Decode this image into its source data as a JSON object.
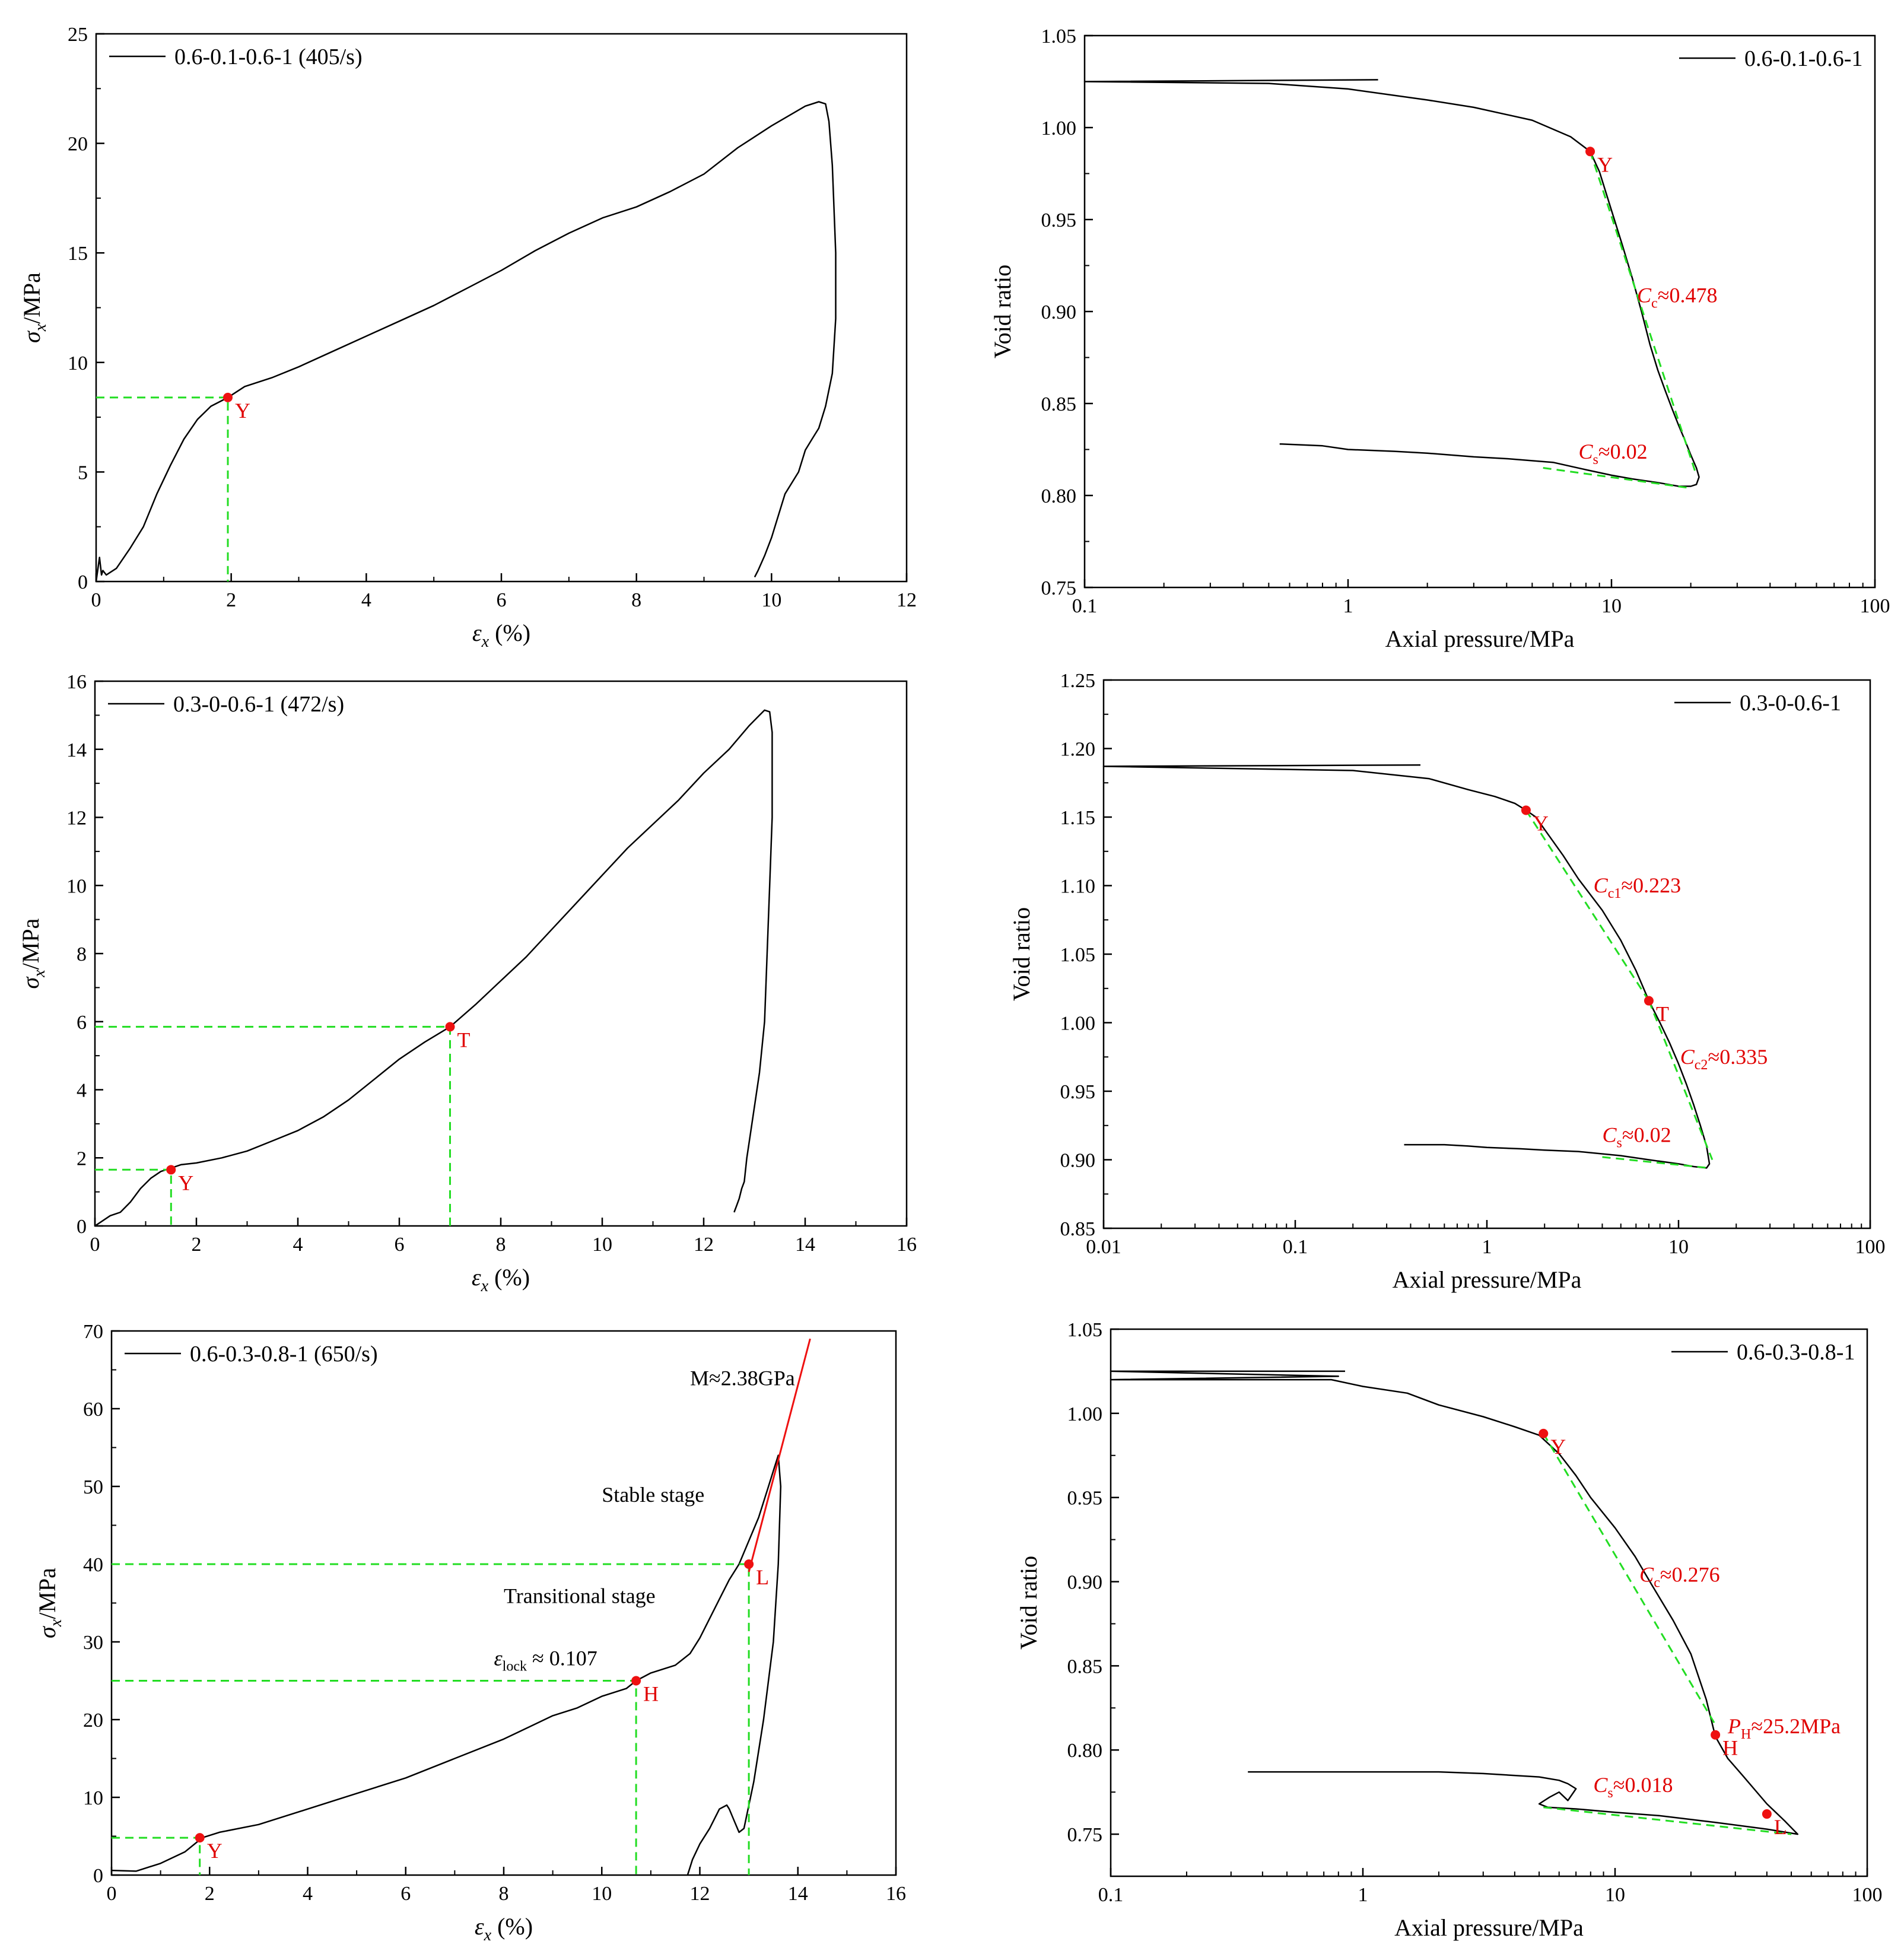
{
  "chart_data": [
    {
      "id": "p1",
      "type": "line",
      "xscale": "linear",
      "xlim": [
        0,
        12
      ],
      "ylim": [
        0,
        25
      ],
      "xticks": [
        0,
        2,
        4,
        6,
        8,
        10,
        12
      ],
      "yticks": [
        0,
        5,
        10,
        15,
        20,
        25
      ],
      "xlabel": "ε_x (%)",
      "ylabel": "σ_x/MPa",
      "legend": "0.6-0.1-0.6-1 (405/s)",
      "series": [
        {
          "name": "0.6-0.1-0.6-1 (405/s)",
          "x": [
            0,
            0.05,
            0.08,
            0.1,
            0.15,
            0.3,
            0.5,
            0.7,
            0.9,
            1.1,
            1.3,
            1.5,
            1.7,
            1.95,
            2.2,
            2.6,
            3,
            3.5,
            4,
            4.5,
            5,
            5.5,
            6,
            6.5,
            7,
            7.5,
            8,
            8.5,
            9,
            9.5,
            10,
            10.5,
            10.7,
            10.8,
            10.85,
            10.9,
            10.95,
            10.95,
            10.9,
            10.8,
            10.7,
            10.6,
            10.5,
            10.4,
            10.2,
            10,
            9.9,
            9.8,
            9.75
          ],
          "y": [
            0,
            1.1,
            0.3,
            0.5,
            0.3,
            0.6,
            1.5,
            2.5,
            4,
            5.3,
            6.5,
            7.4,
            8,
            8.4,
            8.9,
            9.3,
            9.8,
            10.5,
            11.2,
            11.9,
            12.6,
            13.4,
            14.2,
            15.1,
            15.9,
            16.6,
            17.1,
            17.8,
            18.6,
            19.8,
            20.8,
            21.7,
            21.9,
            21.8,
            21,
            19,
            15,
            12,
            9.5,
            8,
            7,
            6.5,
            6,
            5,
            4,
            2,
            1.2,
            0.5,
            0.2
          ]
        },
        {
          "name": "guide",
          "style": "dashed-green",
          "x": [
            0,
            1.95,
            1.95
          ],
          "y": [
            8.4,
            8.4,
            0
          ]
        }
      ],
      "points": [
        {
          "label": "Y",
          "x": 1.95,
          "y": 8.4
        }
      ],
      "annotations": []
    },
    {
      "id": "p2",
      "type": "line",
      "xscale": "log",
      "xlim": [
        0.1,
        100
      ],
      "ylim": [
        0.75,
        1.05
      ],
      "xticks": [
        0.1,
        1,
        10,
        100
      ],
      "xtick_labels": [
        "0.1",
        "1",
        "10",
        "100"
      ],
      "yticks": [
        0.75,
        0.8,
        0.85,
        0.9,
        0.95,
        1.0,
        1.05
      ],
      "ytick_labels": [
        "0.75",
        "0.80",
        "0.85",
        "0.90",
        "0.95",
        "1.00",
        "1.05"
      ],
      "xlabel": "Axial pressure/MPa",
      "ylabel": "Void ratio",
      "legend": "0.6-0.1-0.6-1",
      "series": [
        {
          "name": "0.6-0.1-0.6-1",
          "x": [
            1.3,
            0.1,
            0.5,
            1,
            2,
            3,
            5,
            7,
            8.3,
            9,
            10,
            11,
            12,
            13,
            14,
            15,
            16,
            17,
            18,
            19,
            20,
            21,
            21.5,
            21,
            20,
            18,
            15,
            12,
            10,
            8,
            6,
            4,
            3,
            2,
            1.5,
            1,
            0.8,
            0.55
          ],
          "y": [
            1.026,
            1.025,
            1.024,
            1.021,
            1.015,
            1.011,
            1.004,
            0.995,
            0.987,
            0.976,
            0.955,
            0.936,
            0.918,
            0.9,
            0.882,
            0.868,
            0.857,
            0.847,
            0.838,
            0.83,
            0.822,
            0.815,
            0.81,
            0.806,
            0.805,
            0.805,
            0.807,
            0.809,
            0.811,
            0.814,
            0.818,
            0.82,
            0.821,
            0.823,
            0.824,
            0.825,
            0.827,
            0.828
          ]
        },
        {
          "name": "Cc fit",
          "style": "dashed-green",
          "x": [
            8.3,
            21
          ],
          "y": [
            0.987,
            0.811
          ]
        },
        {
          "name": "Cs fit",
          "style": "dashed-green",
          "x": [
            5.5,
            20
          ],
          "y": [
            0.815,
            0.804
          ]
        }
      ],
      "points": [
        {
          "label": "Y",
          "x": 8.3,
          "y": 0.987
        }
      ],
      "annotations": [
        {
          "main": "C",
          "sub": "c",
          "rest": "≈0.478",
          "x": 12.5,
          "y": 0.905
        },
        {
          "main": "C",
          "sub": "s",
          "rest": "≈0.02",
          "x": 7.5,
          "y": 0.82
        }
      ]
    },
    {
      "id": "p3",
      "type": "line",
      "xscale": "linear",
      "xlim": [
        0,
        16
      ],
      "ylim": [
        0,
        16
      ],
      "xticks": [
        0,
        2,
        4,
        6,
        8,
        10,
        12,
        14,
        16
      ],
      "yticks": [
        0,
        2,
        4,
        6,
        8,
        10,
        12,
        14,
        16
      ],
      "xlabel": "ε_x (%)",
      "ylabel": "σ_x/MPa",
      "legend": "0.3-0-0.6-1 (472/s)",
      "series": [
        {
          "name": "0.3-0-0.6-1 (472/s)",
          "x": [
            0,
            0.1,
            0.3,
            0.5,
            0.7,
            0.9,
            1.1,
            1.3,
            1.5,
            1.7,
            2,
            2.5,
            3,
            3.5,
            4,
            4.5,
            5,
            5.5,
            6,
            6.5,
            7,
            7.5,
            8,
            8.5,
            9,
            9.5,
            10,
            10.5,
            11,
            11.5,
            12,
            12.5,
            12.9,
            13.1,
            13.2,
            13.3,
            13.35,
            13.35,
            13.3,
            13.25,
            13.2,
            13.1,
            13,
            12.9,
            12.85,
            12.8,
            12.75,
            12.7,
            12.65,
            12.6
          ],
          "y": [
            0,
            0.1,
            0.3,
            0.4,
            0.7,
            1.1,
            1.4,
            1.6,
            1.7,
            1.8,
            1.85,
            2.0,
            2.2,
            2.5,
            2.8,
            3.2,
            3.7,
            4.3,
            4.9,
            5.4,
            5.85,
            6.5,
            7.2,
            7.9,
            8.7,
            9.5,
            10.3,
            11.1,
            11.8,
            12.5,
            13.3,
            14.0,
            14.7,
            15.0,
            15.15,
            15.1,
            14.5,
            12,
            10,
            8,
            6,
            4.5,
            3.5,
            2.5,
            2,
            1.3,
            1.1,
            0.8,
            0.6,
            0.4
          ]
        },
        {
          "name": "guide",
          "style": "dashed-green",
          "x": [
            0,
            1.5,
            1.5
          ],
          "y": [
            1.65,
            1.65,
            0
          ]
        },
        {
          "name": "guide",
          "style": "dashed-green",
          "x": [
            0,
            7,
            7
          ],
          "y": [
            5.85,
            5.85,
            0
          ]
        }
      ],
      "points": [
        {
          "label": "Y",
          "x": 1.5,
          "y": 1.65
        },
        {
          "label": "T",
          "x": 7,
          "y": 5.85
        }
      ],
      "annotations": []
    },
    {
      "id": "p4",
      "type": "line",
      "xscale": "log",
      "xlim": [
        0.01,
        100
      ],
      "ylim": [
        0.85,
        1.25
      ],
      "xticks": [
        0.01,
        0.1,
        1,
        10,
        100
      ],
      "xtick_labels": [
        "0.01",
        "0.1",
        "1",
        "10",
        "100"
      ],
      "yticks": [
        0.85,
        0.9,
        0.95,
        1.0,
        1.05,
        1.1,
        1.15,
        1.2,
        1.25
      ],
      "ytick_labels": [
        "0.85",
        "0.90",
        "0.95",
        "1.00",
        "1.05",
        "1.10",
        "1.15",
        "1.20",
        "1.25"
      ],
      "xlabel": "Axial pressure/MPa",
      "ylabel": "Void ratio",
      "legend": "0.3-0-0.6-1",
      "series": [
        {
          "name": "0.3-0-0.6-1",
          "x": [
            0.45,
            0.01,
            0.2,
            0.5,
            0.8,
            1.1,
            1.4,
            1.6,
            1.8,
            2,
            2.5,
            3,
            4,
            5,
            6,
            7,
            8,
            9,
            10,
            11,
            12,
            13,
            14,
            14.5,
            14,
            12,
            10,
            7,
            5,
            3,
            2,
            1.5,
            1,
            0.8,
            0.6,
            0.37
          ],
          "y": [
            1.188,
            1.187,
            1.184,
            1.178,
            1.17,
            1.165,
            1.16,
            1.155,
            1.15,
            1.141,
            1.122,
            1.105,
            1.082,
            1.06,
            1.038,
            1.016,
            1.0,
            0.985,
            0.97,
            0.955,
            0.94,
            0.925,
            0.91,
            0.897,
            0.894,
            0.895,
            0.897,
            0.9,
            0.903,
            0.906,
            0.907,
            0.908,
            0.909,
            0.91,
            0.911,
            0.911
          ]
        },
        {
          "name": "Cc1 fit",
          "style": "dashed-green",
          "x": [
            1.6,
            7
          ],
          "y": [
            1.155,
            1.016
          ]
        },
        {
          "name": "Cc2 fit",
          "style": "dashed-green",
          "x": [
            7,
            15
          ],
          "y": [
            1.016,
            0.9
          ]
        },
        {
          "name": "Cs fit",
          "style": "dashed-green",
          "x": [
            4,
            14.5
          ],
          "y": [
            0.902,
            0.894
          ]
        }
      ],
      "points": [
        {
          "label": "Y",
          "x": 1.6,
          "y": 1.155
        },
        {
          "label": "T",
          "x": 7,
          "y": 1.016
        }
      ],
      "annotations": [
        {
          "main": "C",
          "sub": "c1",
          "rest": "≈0.223",
          "x": 3.6,
          "y": 1.095
        },
        {
          "main": "C",
          "sub": "c2",
          "rest": "≈0.335",
          "x": 10.2,
          "y": 0.97
        },
        {
          "main": "C",
          "sub": "s",
          "rest": "≈0.02",
          "x": 4.0,
          "y": 0.913
        }
      ]
    },
    {
      "id": "p5",
      "type": "line",
      "xscale": "linear",
      "xlim": [
        0,
        16
      ],
      "ylim": [
        0,
        70
      ],
      "xticks": [
        0,
        2,
        4,
        6,
        8,
        10,
        12,
        14,
        16
      ],
      "yticks": [
        0,
        10,
        20,
        30,
        40,
        50,
        60,
        70
      ],
      "xlabel": "ε_x (%)",
      "ylabel": "σ_x/MPa",
      "legend": "0.6-0.3-0.8-1 (650/s)",
      "series": [
        {
          "name": "0.6-0.3-0.8-1 (650/s)",
          "x": [
            0,
            0.5,
            1,
            1.5,
            1.85,
            2.2,
            3,
            4,
            5,
            6,
            7,
            8,
            9,
            9.5,
            10,
            10.5,
            10.7,
            11,
            11.5,
            11.8,
            12,
            12.2,
            12.4,
            12.6,
            12.8,
            13,
            13.2,
            13.4,
            13.5,
            13.6,
            13.65,
            13.6,
            13.5,
            13.3,
            13.1,
            12.9,
            12.8,
            12.7,
            12.6,
            12.55,
            12.4,
            12.2,
            12,
            11.85,
            11.8,
            11.75
          ],
          "y": [
            0.6,
            0.5,
            1.5,
            3.0,
            4.8,
            5.5,
            6.5,
            8.5,
            10.5,
            12.5,
            15,
            17.5,
            20.5,
            21.5,
            23,
            24,
            25,
            26,
            27,
            28.5,
            30.5,
            33,
            35.5,
            38,
            40,
            43,
            46,
            50,
            52,
            54,
            50,
            40,
            30,
            20,
            12,
            6,
            5.5,
            7,
            8.5,
            9,
            8.5,
            6,
            4,
            2,
            1,
            0
          ]
        },
        {
          "name": "guide",
          "style": "dashed-green",
          "x": [
            0,
            1.8,
            1.8
          ],
          "y": [
            4.8,
            4.8,
            0
          ]
        },
        {
          "name": "guide",
          "style": "dashed-green",
          "x": [
            0,
            10.7,
            10.7
          ],
          "y": [
            25,
            25,
            0
          ]
        },
        {
          "name": "guide",
          "style": "dashed-green",
          "x": [
            0,
            13,
            13
          ],
          "y": [
            40,
            40,
            0
          ]
        },
        {
          "name": "M fit",
          "style": "solid-red",
          "x": [
            13,
            14.25
          ],
          "y": [
            39,
            69
          ]
        }
      ],
      "points": [
        {
          "label": "Y",
          "x": 1.8,
          "y": 4.8
        },
        {
          "label": "H",
          "x": 10.7,
          "y": 25
        },
        {
          "label": "L",
          "x": 13,
          "y": 40
        }
      ],
      "annotations": [
        {
          "text": "M≈2.38GPa",
          "color": "black",
          "x": 11.8,
          "y": 63
        },
        {
          "text": "Stable stage",
          "color": "black",
          "x": 10.0,
          "y": 48
        },
        {
          "text": "Transitional stage",
          "color": "black",
          "x": 8.0,
          "y": 35
        },
        {
          "main": "ε",
          "sub": "lock",
          "rest": " ≈ 0.107",
          "color": "black",
          "x": 7.8,
          "y": 27
        }
      ]
    },
    {
      "id": "p6",
      "type": "line",
      "xscale": "log",
      "xlim": [
        0.1,
        100
      ],
      "ylim": [
        0.725,
        1.05
      ],
      "xticks": [
        0.1,
        1,
        10,
        100
      ],
      "xtick_labels": [
        "0.1",
        "1",
        "10",
        "100"
      ],
      "yticks": [
        0.75,
        0.8,
        0.85,
        0.9,
        0.95,
        1.0,
        1.05
      ],
      "ytick_labels": [
        "0.75",
        "0.80",
        "0.85",
        "0.90",
        "0.95",
        "1.00",
        "1.05"
      ],
      "xlabel": "Axial pressure/MPa",
      "ylabel": "Void ratio",
      "legend": "0.6-0.3-0.8-1",
      "series": [
        {
          "name": "0.6-0.3-0.8-1",
          "x": [
            0.85,
            0.1,
            0.8,
            0.1,
            0.75,
            1,
            1.5,
            2,
            3,
            4,
            5,
            6,
            7,
            8,
            10,
            12,
            14,
            17,
            20,
            23,
            25,
            28,
            32,
            40,
            47,
            53,
            40,
            25,
            15,
            10,
            7,
            5.4,
            5,
            5.5,
            6,
            6.5,
            7,
            6.5,
            6,
            5,
            3,
            2,
            1,
            0.6,
            0.35
          ],
          "y": [
            1.025,
            1.025,
            1.022,
            1.02,
            1.02,
            1.016,
            1.012,
            1.005,
            0.998,
            0.992,
            0.987,
            0.976,
            0.963,
            0.95,
            0.932,
            0.915,
            0.898,
            0.877,
            0.857,
            0.83,
            0.808,
            0.795,
            0.785,
            0.768,
            0.758,
            0.75,
            0.753,
            0.757,
            0.761,
            0.763,
            0.765,
            0.766,
            0.768,
            0.772,
            0.775,
            0.77,
            0.777,
            0.78,
            0.782,
            0.784,
            0.786,
            0.787,
            0.787,
            0.787,
            0.787
          ]
        },
        {
          "name": "Cc fit",
          "style": "dashed-green",
          "x": [
            5.2,
            25
          ],
          "y": [
            0.988,
            0.815
          ]
        },
        {
          "name": "Cs fit",
          "style": "dashed-green",
          "x": [
            5.2,
            50
          ],
          "y": [
            0.766,
            0.75
          ]
        }
      ],
      "points": [
        {
          "label": "Y",
          "x": 5.2,
          "y": 0.988
        },
        {
          "label": "H",
          "x": 25,
          "y": 0.809
        },
        {
          "label": "L",
          "x": 40,
          "y": 0.762
        }
      ],
      "annotations": [
        {
          "main": "C",
          "sub": "c",
          "rest": "≈0.276",
          "x": 12.5,
          "y": 0.9
        },
        {
          "main": "P",
          "sub": "H",
          "rest": "≈25.2MPa",
          "x": 28,
          "y": 0.81
        },
        {
          "main": "C",
          "sub": "s",
          "rest": "≈0.018",
          "x": 8.2,
          "y": 0.775
        }
      ]
    }
  ]
}
